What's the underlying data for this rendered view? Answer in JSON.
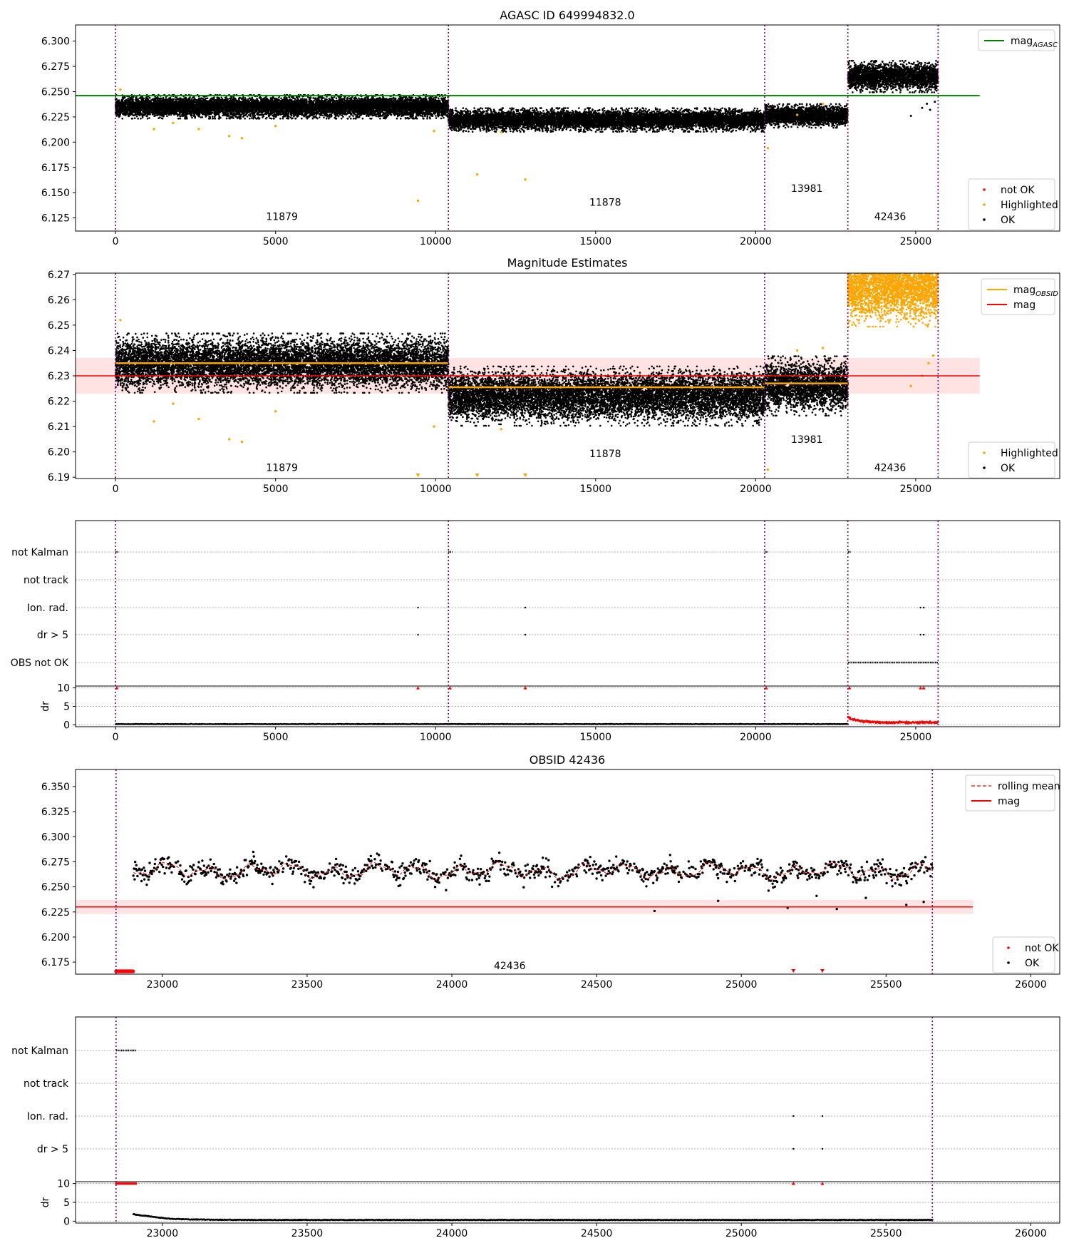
{
  "figure": {
    "panel1_title": "AGASC ID 649994832.0",
    "panel2_title": "Magnitude Estimates",
    "panel4_title": "OBSID 42436"
  },
  "chart_data": [
    {
      "type": "scatter",
      "title": "AGASC ID 649994832.0",
      "xlim": [
        -1250,
        29500
      ],
      "ylim": [
        6.112,
        6.316
      ],
      "xticks": [
        0,
        5000,
        10000,
        15000,
        20000,
        25000
      ],
      "yticks": [
        6.125,
        6.15,
        6.175,
        6.2,
        6.225,
        6.25,
        6.275,
        6.3
      ],
      "obsid_boundaries": [
        0,
        10400,
        20280,
        22880,
        25700
      ],
      "obsid_labels": [
        {
          "text": "11879",
          "x": 5200,
          "y": 6.123
        },
        {
          "text": "11878",
          "x": 15300,
          "y": 6.137
        },
        {
          "text": "13981",
          "x": 21600,
          "y": 6.151
        },
        {
          "text": "42436",
          "x": 24200,
          "y": 6.123
        }
      ],
      "hlines": [
        {
          "name": "mag_AGASC",
          "y": 6.246,
          "x": [
            -1250,
            27000
          ],
          "color": "#007f00"
        }
      ],
      "segments": [
        {
          "x": [
            0,
            10400
          ],
          "mean": 6.235,
          "spread": 0.0045
        },
        {
          "x": [
            10400,
            20280
          ],
          "mean": 6.222,
          "spread": 0.0045
        },
        {
          "x": [
            20280,
            22880
          ],
          "mean": 6.226,
          "spread": 0.0045
        },
        {
          "x": [
            22880,
            25700
          ],
          "mean": 6.265,
          "spread": 0.006
        }
      ],
      "highlighted_points": [
        [
          150,
          6.252
        ],
        [
          1200,
          6.213
        ],
        [
          1800,
          6.219
        ],
        [
          2600,
          6.213
        ],
        [
          3550,
          6.206
        ],
        [
          3950,
          6.204
        ],
        [
          5000,
          6.216
        ],
        [
          9450,
          6.142
        ],
        [
          9950,
          6.211
        ],
        [
          11300,
          6.168
        ],
        [
          12050,
          6.21
        ],
        [
          12800,
          6.163
        ],
        [
          20380,
          6.194
        ],
        [
          21300,
          6.227
        ],
        [
          22100,
          6.238
        ]
      ],
      "outliers_ok": [
        [
          24850,
          6.226
        ],
        [
          25200,
          6.234
        ],
        [
          25350,
          6.238
        ],
        [
          25450,
          6.232
        ],
        [
          25600,
          6.24
        ]
      ],
      "legend_top": [
        {
          "label": "mag_AGASC",
          "label_main": "mag",
          "label_sub": "AGASC",
          "color": "#007f00"
        }
      ],
      "legend_bottom": [
        {
          "label": "not OK",
          "color": "#ff0000"
        },
        {
          "label": "Highlighted",
          "color": "#ffa500"
        },
        {
          "label": "OK",
          "color": "#000000"
        }
      ]
    },
    {
      "type": "scatter",
      "title": "Magnitude Estimates",
      "xlim": [
        -1250,
        29500
      ],
      "ylim": [
        6.1895,
        6.2705
      ],
      "xticks": [
        0,
        5000,
        10000,
        15000,
        20000,
        25000
      ],
      "yticks": [
        6.19,
        6.2,
        6.21,
        6.22,
        6.23,
        6.24,
        6.25,
        6.26,
        6.27
      ],
      "obsid_boundaries": [
        0,
        10400,
        20280,
        22880,
        25700
      ],
      "obsid_labels": [
        {
          "text": "11879",
          "x": 5200,
          "y": 6.1925
        },
        {
          "text": "11878",
          "x": 15300,
          "y": 6.198
        },
        {
          "text": "13981",
          "x": 21600,
          "y": 6.2035
        },
        {
          "text": "42436",
          "x": 24200,
          "y": 6.1925
        }
      ],
      "mag": 6.23,
      "mag_band": [
        6.223,
        6.237
      ],
      "mag_obsid": [
        {
          "x": [
            0,
            10400
          ],
          "y": 6.235
        },
        {
          "x": [
            10400,
            20280
          ],
          "y": 6.2255
        },
        {
          "x": [
            20280,
            22880
          ],
          "y": 6.227
        }
      ],
      "segments": [
        {
          "x": [
            0,
            10400
          ],
          "mean": 6.235,
          "spread": 0.0045
        },
        {
          "x": [
            10400,
            20280
          ],
          "mean": 6.222,
          "spread": 0.0045
        },
        {
          "x": [
            20280,
            22880
          ],
          "mean": 6.226,
          "spread": 0.0045
        }
      ],
      "highlighted_segment": {
        "x": [
          22880,
          25700
        ],
        "mean": 6.265,
        "spread": 0.006
      },
      "highlighted_points": [
        [
          150,
          6.252
        ],
        [
          1200,
          6.212
        ],
        [
          1800,
          6.219
        ],
        [
          2600,
          6.213
        ],
        [
          3550,
          6.205
        ],
        [
          3950,
          6.204
        ],
        [
          5000,
          6.216
        ],
        [
          9950,
          6.21
        ],
        [
          12050,
          6.209
        ],
        [
          20380,
          6.193
        ],
        [
          21300,
          6.24
        ],
        [
          22100,
          6.241
        ],
        [
          24850,
          6.226
        ],
        [
          25200,
          6.23
        ],
        [
          25400,
          6.235
        ],
        [
          25550,
          6.238
        ]
      ],
      "offscale_markers": [
        9450,
        11300,
        12800
      ],
      "legend_top": [
        {
          "label": "mag_OBSID",
          "label_main": "mag",
          "label_sub": "OBSID",
          "color": "#ffa500"
        },
        {
          "label": "mag",
          "color": "#ff0000"
        }
      ],
      "legend_bottom": [
        {
          "label": "Highlighted",
          "color": "#ffa500"
        },
        {
          "label": "OK",
          "color": "#000000"
        }
      ]
    },
    {
      "type": "scatter",
      "xlim": [
        -1250,
        29500
      ],
      "xticks": [
        0,
        5000,
        10000,
        15000,
        20000,
        25000
      ],
      "flag_rows": [
        "not Kalman",
        "not track",
        "Ion. rad.",
        "dr > 5",
        "OBS not OK"
      ],
      "obsid_boundaries": [
        0,
        10400,
        20280,
        22880,
        25700
      ],
      "flags": {
        "not Kalman": [
          [
            0,
            80
          ],
          [
            10400,
            10520
          ],
          [
            20280,
            20380
          ],
          [
            22880,
            22980
          ]
        ],
        "Ion. rad.": [
          [
            9450,
            9450
          ],
          [
            12800,
            12800
          ],
          [
            25150,
            25150
          ],
          [
            25250,
            25250
          ]
        ],
        "dr > 5": [
          [
            9450,
            9450
          ],
          [
            12800,
            12800
          ],
          [
            25150,
            25150
          ],
          [
            25250,
            25250
          ]
        ],
        "OBS not OK": [
          [
            22880,
            25700
          ]
        ]
      },
      "dr_ylim": [
        -0.5,
        10.5
      ],
      "dr_yticks": [
        0,
        5,
        10
      ],
      "dr_ylabel": "dr",
      "dr_red_markers": [
        40,
        9450,
        10450,
        12800,
        20330,
        22930,
        25150,
        25250
      ],
      "dr_profile": {
        "baseline": 0.15,
        "red_region": [
          22880,
          25700
        ],
        "red_start": 2.0,
        "red_level": 0.6
      }
    },
    {
      "type": "scatter",
      "title": "OBSID 42436",
      "xlim": [
        22700,
        26100
      ],
      "ylim": [
        6.163,
        6.367
      ],
      "xticks": [
        23000,
        23500,
        24000,
        24500,
        25000,
        25500,
        26000
      ],
      "yticks": [
        6.175,
        6.2,
        6.225,
        6.25,
        6.275,
        6.3,
        6.325,
        6.35
      ],
      "obsid_boundaries": [
        22840,
        25660
      ],
      "obsid_labels": [
        {
          "text": "42436",
          "x": 24200,
          "y": 6.168
        }
      ],
      "mag": 6.23,
      "mag_band": [
        6.223,
        6.237
      ],
      "mag_line_x": [
        22700,
        25800
      ],
      "data_range": [
        22900,
        25660
      ],
      "mean_level": 6.266,
      "outliers_ok": [
        [
          24700,
          6.226
        ],
        [
          24920,
          6.236
        ],
        [
          25160,
          6.229
        ],
        [
          25260,
          6.241
        ],
        [
          25330,
          6.228
        ],
        [
          25430,
          6.239
        ],
        [
          25570,
          6.232
        ],
        [
          25630,
          6.235
        ]
      ],
      "notok_bottom": [
        22840,
        22900
      ],
      "notok_triangles": [
        25180,
        25280
      ],
      "legend_top": [
        {
          "label": "rolling mean",
          "color": "#ff0000"
        },
        {
          "label": "mag",
          "color": "#ff0000"
        }
      ],
      "legend_bottom": [
        {
          "label": "not OK",
          "color": "#ff0000"
        },
        {
          "label": "OK",
          "color": "#000000"
        }
      ]
    },
    {
      "type": "scatter",
      "xlim": [
        22700,
        26100
      ],
      "xticks": [
        23000,
        23500,
        24000,
        24500,
        25000,
        25500,
        26000
      ],
      "flag_rows": [
        "not Kalman",
        "not track",
        "Ion. rad.",
        "dr > 5"
      ],
      "obsid_boundaries": [
        22840,
        25660
      ],
      "flags": {
        "not Kalman": [
          [
            22840,
            22910
          ]
        ],
        "Ion. rad.": [
          [
            25180,
            25180
          ],
          [
            25280,
            25280
          ]
        ],
        "dr > 5": [
          [
            25180,
            25180
          ],
          [
            25280,
            25280
          ]
        ]
      },
      "dr_ylim": [
        -0.5,
        10.5
      ],
      "dr_yticks": [
        0,
        5,
        10
      ],
      "dr_ylabel": "dr",
      "dr_red_range": [
        22840,
        22910
      ],
      "dr_red_markers": [
        25180,
        25280
      ],
      "dr_profile": {
        "start": 22900,
        "start_value": 2.0,
        "level": 0.25
      }
    }
  ]
}
